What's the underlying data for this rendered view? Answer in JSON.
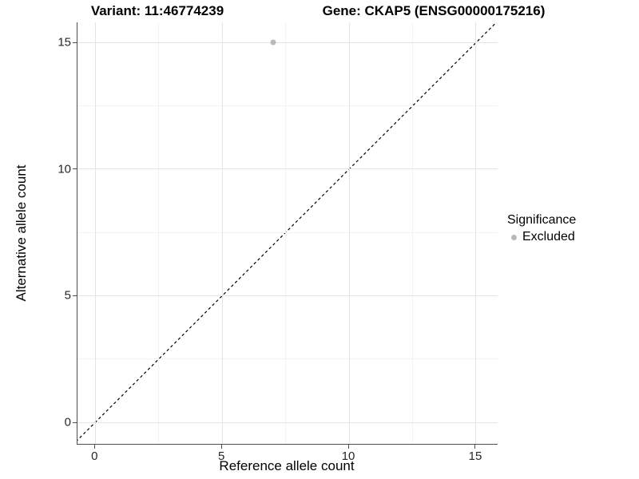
{
  "chart_data": {
    "type": "scatter",
    "title_left": "Variant: 11:46774239",
    "title_right": "Gene: CKAP5 (ENSG00000175216)",
    "xlabel": "Reference allele count",
    "ylabel": "Alternative allele count",
    "xlim": [
      -0.7,
      15.85
    ],
    "ylim": [
      -0.85,
      15.8
    ],
    "xticks": [
      0,
      5,
      10,
      15
    ],
    "yticks": [
      0,
      5,
      10,
      15
    ],
    "xticks_minor": [
      2.5,
      7.5,
      12.5
    ],
    "yticks_minor": [
      2.5,
      7.5,
      12.5
    ],
    "grid": true,
    "background": "#ffffff",
    "reference_line": {
      "type": "abline",
      "slope": 1,
      "intercept": 0,
      "style": "dashed",
      "color": "#000000"
    },
    "series": [
      {
        "name": "Excluded",
        "color": "#b9b9b9",
        "points": [
          {
            "x": 7,
            "y": 15
          }
        ]
      }
    ],
    "legend": {
      "title": "Significance",
      "position": "right",
      "items": [
        {
          "label": "Excluded",
          "color": "#b9b9b9"
        }
      ]
    }
  }
}
